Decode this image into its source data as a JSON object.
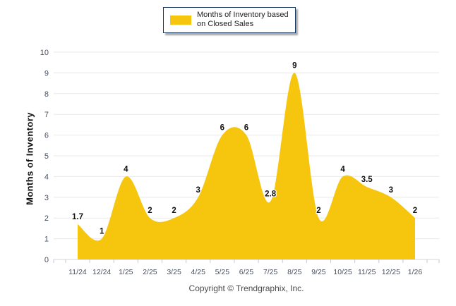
{
  "footer": {
    "copyright": "Copyright © Trendgraphix, Inc."
  },
  "chart_data": {
    "type": "area",
    "title": "",
    "legend": "Months of Inventory based on Closed Sales",
    "legend_position": "top",
    "xlabel": "",
    "ylabel": "Months of Inventory",
    "categories": [
      "11/24",
      "12/24",
      "1/25",
      "2/25",
      "3/25",
      "4/25",
      "5/25",
      "6/25",
      "7/25",
      "8/25",
      "9/25",
      "10/25",
      "11/25",
      "12/25",
      "1/26"
    ],
    "values": [
      1.7,
      1,
      4,
      2,
      2,
      3,
      6,
      6,
      2.8,
      9,
      2,
      4,
      3.5,
      3,
      2
    ],
    "ylim": [
      0,
      10
    ],
    "ytick_step": 1,
    "grid": true,
    "smooth": true,
    "colors": {
      "area_fill": "#F6C50D",
      "legend_border": "#17375E",
      "gridline": "#E8E8EB",
      "baseline": "#D6D6D6",
      "tick": "#C3C8CF",
      "axis_text": "#47505E",
      "data_label": "#111111"
    }
  }
}
